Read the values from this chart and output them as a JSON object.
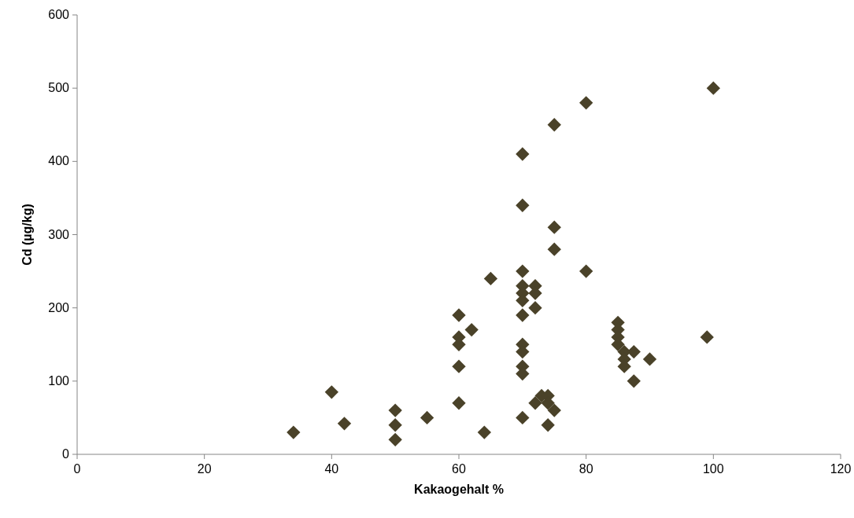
{
  "chart_data": {
    "type": "scatter",
    "xlabel": "Kakaogehalt %",
    "ylabel": "Cd (µg/kg)",
    "xlim": [
      0,
      120
    ],
    "xticks": [
      0,
      20,
      40,
      60,
      80,
      100,
      120
    ],
    "ylim": [
      0,
      600
    ],
    "yticks": [
      0,
      100,
      200,
      300,
      400,
      500,
      600
    ],
    "grid": false,
    "marker": "diamond",
    "series": [
      {
        "color": "#4a4229",
        "x": [
          34,
          40,
          42,
          50,
          50,
          50,
          55,
          60,
          60,
          60,
          60,
          60,
          62,
          64,
          65,
          70,
          70,
          70,
          70,
          70,
          70,
          70,
          70,
          70,
          70,
          70,
          70,
          72,
          72,
          72,
          72,
          73,
          74,
          74,
          75,
          74,
          75,
          75,
          75,
          80,
          80,
          85,
          85,
          85,
          85,
          86,
          86,
          86,
          87.5,
          87.5,
          90,
          99,
          100
        ],
        "values": [
          30,
          85,
          42,
          60,
          40,
          20,
          50,
          190,
          160,
          150,
          120,
          70,
          170,
          30,
          240,
          410,
          340,
          250,
          230,
          220,
          210,
          190,
          150,
          140,
          120,
          110,
          50,
          230,
          220,
          200,
          70,
          80,
          80,
          70,
          60,
          40,
          450,
          310,
          280,
          480,
          250,
          180,
          170,
          160,
          150,
          140,
          130,
          120,
          140,
          100,
          130,
          160,
          500
        ]
      }
    ]
  }
}
